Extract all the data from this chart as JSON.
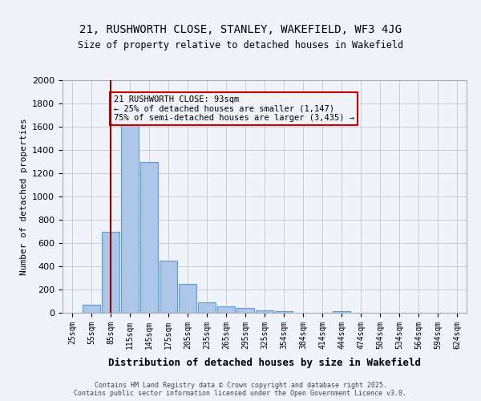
{
  "title_line1": "21, RUSHWORTH CLOSE, STANLEY, WAKEFIELD, WF3 4JG",
  "title_line2": "Size of property relative to detached houses in Wakefield",
  "xlabel": "Distribution of detached houses by size in Wakefield",
  "ylabel": "Number of detached properties",
  "categories": [
    "25sqm",
    "55sqm",
    "85sqm",
    "115sqm",
    "145sqm",
    "175sqm",
    "205sqm",
    "235sqm",
    "265sqm",
    "295sqm",
    "325sqm",
    "354sqm",
    "384sqm",
    "414sqm",
    "444sqm",
    "474sqm",
    "504sqm",
    "534sqm",
    "564sqm",
    "594sqm",
    "624sqm"
  ],
  "values": [
    0,
    70,
    700,
    1650,
    1300,
    450,
    250,
    90,
    55,
    40,
    20,
    15,
    0,
    0,
    15,
    0,
    0,
    0,
    0,
    0,
    0
  ],
  "bar_color": "#aec6e8",
  "bar_edge_color": "#5b9bd5",
  "grid_color": "#cccccc",
  "vline_x": 2,
  "vline_color": "#8b0000",
  "annotation_text": "21 RUSHWORTH CLOSE: 93sqm\n← 25% of detached houses are smaller (1,147)\n75% of semi-detached houses are larger (3,435) →",
  "annotation_box_edge": "#cc0000",
  "ylim": [
    0,
    2000
  ],
  "yticks": [
    0,
    200,
    400,
    600,
    800,
    1000,
    1200,
    1400,
    1600,
    1800,
    2000
  ],
  "footnote": "Contains HM Land Registry data © Crown copyright and database right 2025.\nContains public sector information licensed under the Open Government Licence v3.0.",
  "bg_color": "#f0f4fa"
}
